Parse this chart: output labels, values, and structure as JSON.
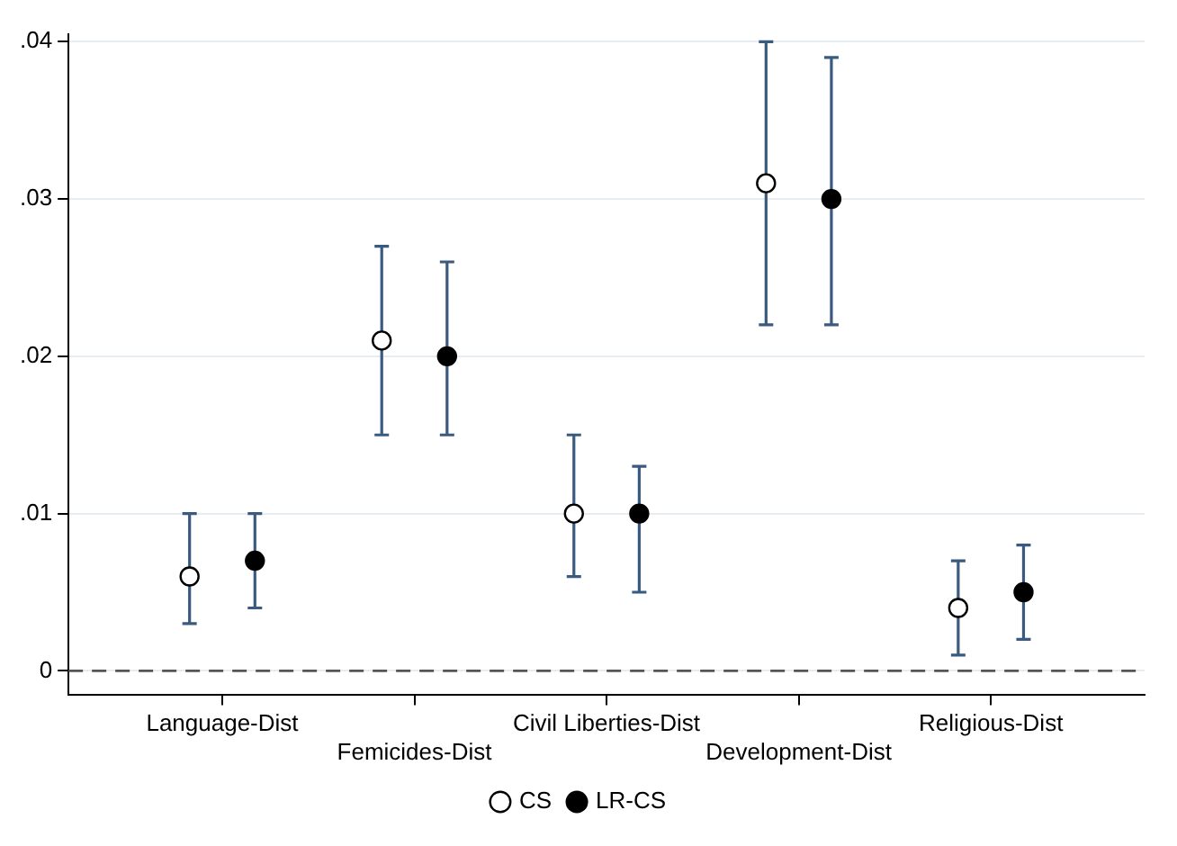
{
  "chart_data": {
    "type": "scatter",
    "categories": [
      "Language-Dist",
      "Femicides-Dist",
      "Civil Liberties-Dist",
      "Development-Dist",
      "Religious-Dist"
    ],
    "series": [
      {
        "name": "CS",
        "color": "#ffffff",
        "values": [
          0.006,
          0.021,
          0.01,
          0.031,
          0.004
        ],
        "errors": [
          [
            0.003,
            0.01
          ],
          [
            0.015,
            0.027
          ],
          [
            0.006,
            0.015
          ],
          [
            0.022,
            0.04
          ],
          [
            0.001,
            0.007
          ]
        ]
      },
      {
        "name": "LR-CS",
        "color": "#000000",
        "values": [
          0.007,
          0.02,
          0.01,
          0.03,
          0.005
        ],
        "errors": [
          [
            0.004,
            0.01
          ],
          [
            0.015,
            0.026
          ],
          [
            0.005,
            0.013
          ],
          [
            0.022,
            0.039
          ],
          [
            0.002,
            0.008
          ]
        ]
      }
    ],
    "ylim": [
      -0.0015,
      0.0405
    ],
    "yticks": [
      0,
      {
        "value": 0.01,
        "label": ".01"
      },
      {
        "value": 0.02,
        "label": ".02"
      },
      {
        "value": 0.03,
        "label": ".03"
      },
      {
        "value": 0.04,
        "label": ".04"
      }
    ],
    "ref_lines": [
      {
        "axis": "y",
        "value": 0,
        "line_style": "dashed",
        "color": "#555555"
      }
    ],
    "grid": "y",
    "legend": "bottom",
    "marker": "circle"
  }
}
